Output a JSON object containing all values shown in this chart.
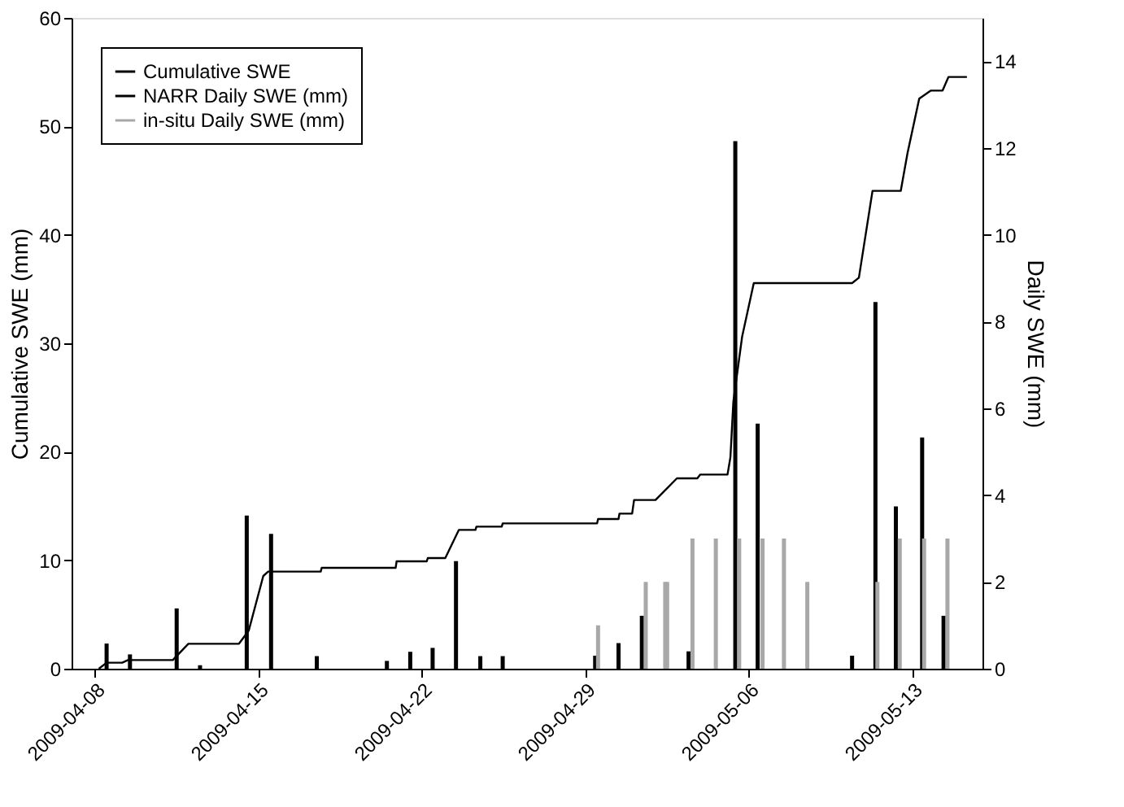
{
  "chart_data": {
    "type": "line",
    "ylabel": "Cumulative SWE (mm)",
    "y2label": "Daily SWE (mm)",
    "xlim": [
      "2009-04-07",
      "2009-05-16"
    ],
    "xticks": [
      "2009-04-08",
      "2009-04-15",
      "2009-04-22",
      "2009-04-29",
      "2009-05-06",
      "2009-05-13"
    ],
    "ylim": [
      0,
      60
    ],
    "yticks": [
      0,
      10,
      20,
      30,
      40,
      50,
      60
    ],
    "y2lim": [
      0,
      15
    ],
    "y2ticks": [
      0,
      2,
      4,
      6,
      8,
      10,
      12,
      14
    ],
    "grid": false,
    "legend": "top left",
    "series": [
      {
        "name": "Cumulative SWE",
        "color": "#000000",
        "x": [
          "2009-04-08T04:00",
          "2009-04-08T12:00",
          "2009-04-09T04:00",
          "2009-04-09T10:00",
          "2009-04-11T08:00",
          "2009-04-12T00:00",
          "2009-04-14T04:00",
          "2009-04-14T14:00",
          "2009-04-15T05:00",
          "2009-04-15T10:00",
          "2009-04-17T16:00",
          "2009-04-17T17:00",
          "2009-04-20T21:00",
          "2009-04-20T22:00",
          "2009-04-22T05:00",
          "2009-04-22T06:00",
          "2009-04-23T00:00",
          "2009-04-23T14:00",
          "2009-04-24T07:00",
          "2009-04-24T08:00",
          "2009-04-25T10:00",
          "2009-04-25T11:00",
          "2009-04-29T12:00",
          "2009-04-29T13:00",
          "2009-04-30T10:00",
          "2009-04-30T11:00",
          "2009-05-01T00:00",
          "2009-05-01T02:00",
          "2009-05-02T00:00",
          "2009-05-02T22:00",
          "2009-05-03T19:00",
          "2009-05-03T22:00",
          "2009-05-05T02:00",
          "2009-05-05T05:00",
          "2009-05-05T08:00",
          "2009-05-05T17:00",
          "2009-05-06T05:00",
          "2009-05-10T10:00",
          "2009-05-10T17:00",
          "2009-05-11T07:00",
          "2009-05-12T12:00",
          "2009-05-12T19:00",
          "2009-05-13T07:00",
          "2009-05-13T19:00",
          "2009-05-14T07:00",
          "2009-05-14T13:00",
          "2009-05-15T08:00"
        ],
        "values": [
          0,
          0.55,
          0.55,
          0.8,
          0.8,
          2.3,
          2.3,
          3.5,
          8.55,
          8.95,
          8.95,
          9.3,
          9.3,
          9.9,
          9.9,
          10.2,
          10.2,
          12.8,
          12.8,
          13.1,
          13.1,
          13.4,
          13.4,
          13.8,
          13.8,
          14.3,
          14.3,
          15.55,
          15.55,
          17.55,
          17.55,
          17.9,
          17.9,
          19.5,
          24.6,
          30.6,
          35.55,
          35.55,
          36.05,
          44.05,
          44.05,
          47.55,
          52.55,
          53.3,
          53.3,
          54.55,
          54.55
        ]
      },
      {
        "name": "NARR Daily SWE (mm)",
        "type": "bar",
        "axis": "y2",
        "color": "#000000",
        "x": [
          "2009-04-08T12:00",
          "2009-04-09T12:00",
          "2009-04-11T12:00",
          "2009-04-12T12:00",
          "2009-04-14T12:00",
          "2009-04-15T13:00",
          "2009-04-17T12:00",
          "2009-04-20T12:00",
          "2009-04-21T12:00",
          "2009-04-22T11:00",
          "2009-04-23T11:00",
          "2009-04-24T12:00",
          "2009-04-25T11:00",
          "2009-04-29T10:00",
          "2009-04-30T10:00",
          "2009-05-01T10:00",
          "2009-05-03T10:00",
          "2009-05-05T10:00",
          "2009-05-06T09:00",
          "2009-05-10T10:00",
          "2009-05-11T10:00",
          "2009-05-12T07:00",
          "2009-05-13T10:00",
          "2009-05-14T08:00"
        ],
        "values": [
          0.58,
          0.33,
          1.39,
          0.08,
          3.53,
          3.11,
          0.29,
          0.18,
          0.39,
          0.48,
          2.48,
          0.29,
          0.29,
          0.3,
          0.59,
          1.22,
          0.4,
          12.16,
          5.65,
          0.3,
          8.45,
          3.74,
          5.33,
          1.22
        ]
      },
      {
        "name": "in-situ Daily SWE (mm)",
        "type": "bar",
        "axis": "y2",
        "color": "#a8a8a8",
        "x": [
          "2009-04-29T13:00",
          "2009-05-01T14:00",
          "2009-05-02T10:00",
          "2009-05-02T12:00",
          "2009-05-03T14:00",
          "2009-05-04T14:00",
          "2009-05-05T14:00",
          "2009-05-06T14:00",
          "2009-05-07T12:00",
          "2009-05-08T12:00",
          "2009-05-11T12:00",
          "2009-05-12T11:00",
          "2009-05-13T12:00",
          "2009-05-14T12:00"
        ],
        "values": [
          1,
          2,
          2,
          2,
          3,
          3,
          3,
          3,
          3,
          2,
          2,
          3,
          3,
          3
        ]
      }
    ]
  }
}
